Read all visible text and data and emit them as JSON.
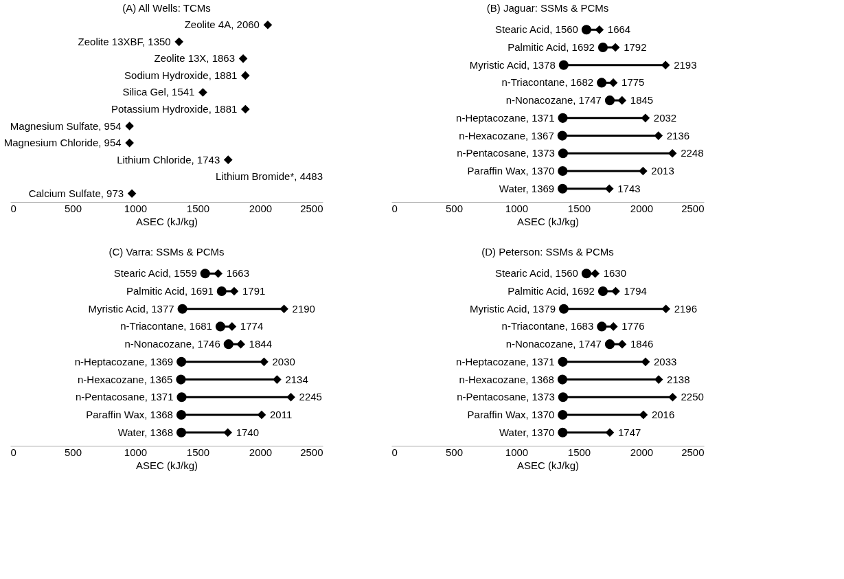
{
  "chart_data": [
    {
      "type": "scatter",
      "title": "(A) All Wells: TCMs",
      "xlabel": "ASEC (kJ/kg)",
      "xlim": [
        0,
        2500
      ],
      "xticks": [
        0,
        500,
        1000,
        1500,
        2000,
        2500
      ],
      "grid": false,
      "orientation": "horizontal",
      "marker": "diamond",
      "categories": [
        "Zeolite 4A, 2060",
        "Zeolite 13XBF, 1350",
        "Zeolite 13X, 1863",
        "Sodium Hydroxide, 1881",
        "Silica Gel, 1541",
        "Potassium Hydroxide, 1881",
        "Magnesium Sulfate, 954",
        "Magnesium Chloride, 954",
        "Lithium Chloride, 1743",
        "Lithium Bromide*, 4483",
        "Calcium Sulfate, 973"
      ],
      "series": [
        {
          "color": "#000000",
          "values": [
            2060,
            1350,
            1863,
            1881,
            1541,
            1881,
            954,
            954,
            1743,
            null,
            973
          ]
        }
      ]
    },
    {
      "type": "scatter",
      "title": "(B) Jaguar: SSMs & PCMs",
      "xlabel": "ASEC (kJ/kg)",
      "xlim": [
        0,
        2500
      ],
      "xticks": [
        0,
        500,
        1000,
        1500,
        2000,
        2500
      ],
      "grid": false,
      "orientation": "horizontal",
      "categories": [
        "Stearic Acid, 1560",
        "Palmitic Acid, 1692",
        "Myristic Acid, 1378",
        "n-Triacontane, 1682",
        "n-Nonacozane, 1747",
        "n-Heptacozane, 1371",
        "n-Hexacozane, 1367",
        "n-Pentacosane, 1373",
        "Paraffin Wax, 1370",
        "Water, 1369"
      ],
      "series": [
        {
          "color": "#000000",
          "marker": "circle",
          "values": [
            1560,
            1692,
            1378,
            1682,
            1747,
            1371,
            1367,
            1373,
            1370,
            1369
          ]
        },
        {
          "color": "#000000",
          "marker": "diamond",
          "values": [
            1664,
            1792,
            2193,
            1775,
            1845,
            2032,
            2136,
            2248,
            2013,
            1743
          ],
          "value_labels": [
            "1664",
            "1792",
            "2193",
            "1775",
            "1845",
            "2032",
            "2136",
            "2248",
            "2013",
            "1743"
          ]
        }
      ]
    },
    {
      "type": "scatter",
      "title": "(C) Varra: SSMs & PCMs",
      "xlabel": "ASEC (kJ/kg)",
      "xlim": [
        0,
        2500
      ],
      "xticks": [
        0,
        500,
        1000,
        1500,
        2000,
        2500
      ],
      "grid": false,
      "orientation": "horizontal",
      "categories": [
        "Stearic Acid, 1559",
        "Palmitic Acid, 1691",
        "Myristic Acid, 1377",
        "n-Triacontane, 1681",
        "n-Nonacozane, 1746",
        "n-Heptacozane, 1369",
        "n-Hexacozane, 1365",
        "n-Pentacosane, 1371",
        "Paraffin Wax, 1368",
        "Water, 1368"
      ],
      "series": [
        {
          "color": "#000000",
          "marker": "circle",
          "values": [
            1559,
            1691,
            1377,
            1681,
            1746,
            1369,
            1365,
            1371,
            1368,
            1368
          ]
        },
        {
          "color": "#000000",
          "marker": "diamond",
          "values": [
            1663,
            1791,
            2190,
            1774,
            1844,
            2030,
            2134,
            2245,
            2011,
            1740
          ],
          "value_labels": [
            "1663",
            "1791",
            "2190",
            "1774",
            "1844",
            "2030",
            "2134",
            "2245",
            "2011",
            "1740"
          ]
        }
      ]
    },
    {
      "type": "scatter",
      "title": "(D) Peterson: SSMs & PCMs",
      "xlabel": "ASEC (kJ/kg)",
      "xlim": [
        0,
        2500
      ],
      "xticks": [
        0,
        500,
        1000,
        1500,
        2000,
        2500
      ],
      "grid": false,
      "orientation": "horizontal",
      "categories": [
        "Stearic Acid, 1560",
        "Palmitic Acid, 1692",
        "Myristic Acid, 1379",
        "n-Triacontane, 1683",
        "n-Nonacozane, 1747",
        "n-Heptacozane, 1371",
        "n-Hexacozane, 1368",
        "n-Pentacosane, 1373",
        "Paraffin Wax, 1370",
        "Water, 1370"
      ],
      "series": [
        {
          "color": "#000000",
          "marker": "circle",
          "values": [
            1560,
            1692,
            1379,
            1683,
            1747,
            1371,
            1368,
            1373,
            1370,
            1370
          ]
        },
        {
          "color": "#000000",
          "marker": "diamond",
          "values": [
            1630,
            1794,
            2196,
            1776,
            1846,
            2033,
            2138,
            2250,
            2016,
            1747
          ],
          "value_labels": [
            "1630",
            "1794",
            "2196",
            "1776",
            "1846",
            "2033",
            "2138",
            "2250",
            "2016",
            "1747"
          ]
        }
      ]
    }
  ]
}
